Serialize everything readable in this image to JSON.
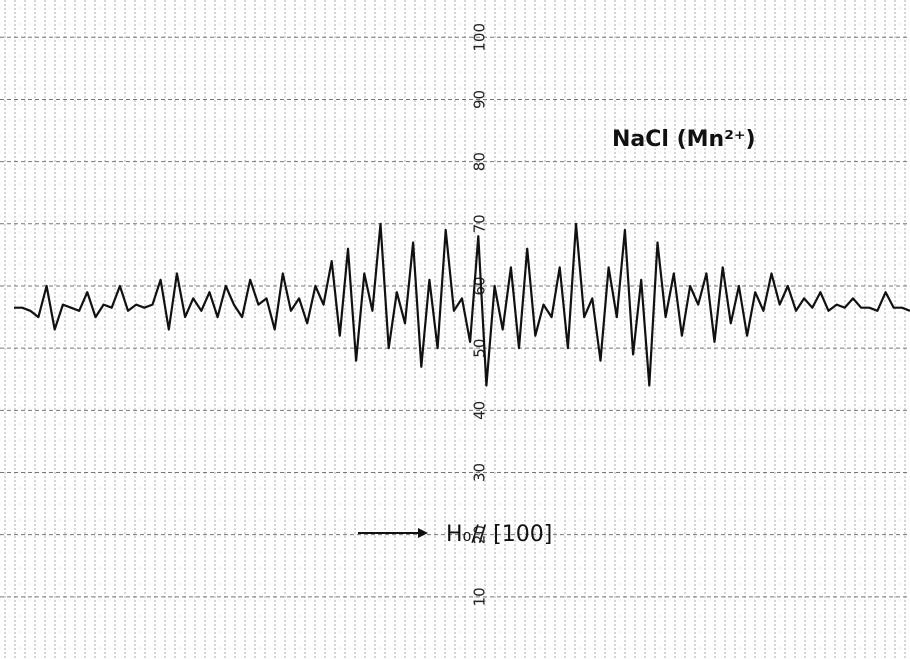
{
  "chart_data": {
    "type": "line",
    "title": "NaCl (Mn²⁺)",
    "annotation": "H₀// [100]",
    "ylim": [
      0,
      106
    ],
    "yticks": [
      10,
      20,
      30,
      40,
      50,
      60,
      70,
      80,
      90,
      100
    ],
    "grid": true,
    "color": "#111111",
    "values": [
      56.5,
      56.5,
      56,
      55,
      60,
      53,
      57,
      56.5,
      56,
      59,
      55,
      57,
      56.5,
      60,
      56,
      57,
      56.5,
      57,
      61,
      53,
      62,
      55,
      58,
      56,
      59,
      55,
      60,
      57,
      55,
      61,
      57,
      58,
      53,
      62,
      56,
      58,
      54,
      60,
      57,
      64,
      52,
      66,
      48,
      62,
      56,
      70,
      50,
      59,
      54,
      67,
      47,
      61,
      50,
      69,
      56,
      58,
      51,
      68,
      44,
      60,
      53,
      63,
      50,
      66,
      52,
      57,
      55,
      63,
      50,
      70,
      55,
      58,
      48,
      63,
      55,
      69,
      49,
      61,
      44,
      67,
      55,
      62,
      52,
      60,
      57,
      62,
      51,
      63,
      54,
      60,
      52,
      59,
      56,
      62,
      57,
      60,
      56,
      58,
      56.5,
      59,
      56,
      57,
      56.5,
      58,
      56.5,
      56.5,
      56,
      59,
      56.5,
      56.5,
      56
    ]
  }
}
